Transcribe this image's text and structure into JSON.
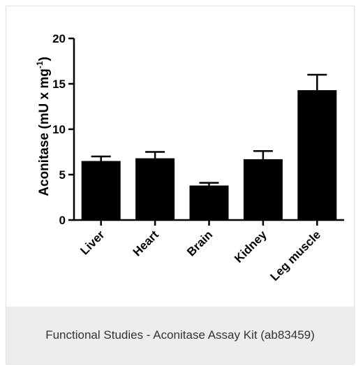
{
  "chart_data": {
    "type": "bar",
    "title": "",
    "xlabel": "",
    "ylabel": "Aconitase (mU x mg",
    "ylabel_superscript": "-1",
    "ylabel_suffix": ")",
    "categories": [
      "Liver",
      "Heart",
      "Brain",
      "Kidney",
      "Leg muscle"
    ],
    "values": [
      6.5,
      6.8,
      3.8,
      6.7,
      14.3
    ],
    "error_upper": [
      0.5,
      0.7,
      0.3,
      0.9,
      1.7
    ],
    "ylim": [
      0,
      20
    ],
    "yticks": [
      "0",
      "5",
      "10",
      "15",
      "20"
    ],
    "bar_color": "#000000",
    "grid": false
  },
  "caption": "Functional Studies - Aconitase Assay Kit (ab83459)",
  "colors": {
    "caption_background": "#ededed",
    "caption_text": "#333333"
  }
}
